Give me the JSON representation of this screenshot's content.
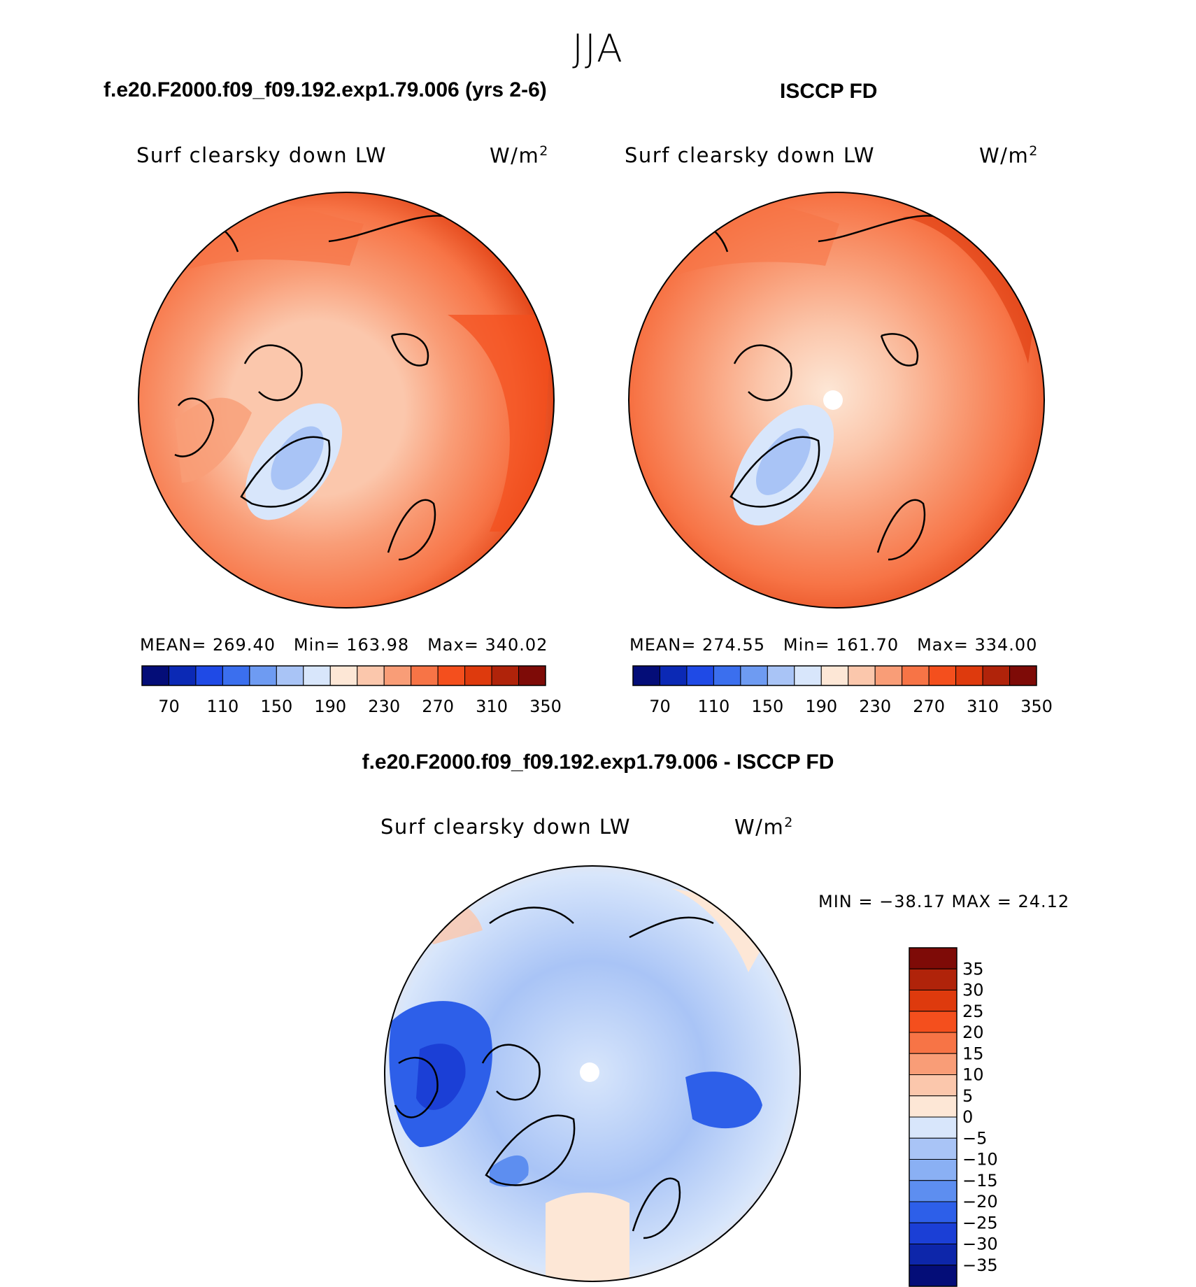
{
  "season": "JJA",
  "panels": {
    "model": {
      "title": "f.e20.F2000.f09_f09.192.exp1.79.006 (yrs 2-6)",
      "var_label": "Surf clearsky down LW",
      "units_base": "W/m",
      "units_sup": "2",
      "mean_label": "MEAN=",
      "mean": "269.40",
      "min_label": "Min=",
      "min": "163.98",
      "max_label": "Max=",
      "max": "340.02"
    },
    "obs": {
      "title": "ISCCP FD",
      "var_label": "Surf clearsky down LW",
      "units_base": "W/m",
      "units_sup": "2",
      "mean_label": "MEAN=",
      "mean": "274.55",
      "min_label": "Min=",
      "min": "161.70",
      "max_label": "Max=",
      "max": "334.00"
    },
    "diff": {
      "title": "f.e20.F2000.f09_f09.192.exp1.79.006 - ISCCP FD",
      "var_label": "Surf clearsky down LW",
      "units_base": "W/m",
      "units_sup": "2",
      "minmax": "MIN = −38.17 MAX =   24.12"
    }
  },
  "chart_data": [
    {
      "type": "heatmap",
      "projection": "north polar stereographic",
      "title": "f.e20.F2000.f09_f09.192.exp1.79.006 (yrs 2-6)",
      "variable": "Surf clearsky down LW",
      "units": "W/m2",
      "mean": 269.4,
      "min": 163.98,
      "max": 340.02,
      "colorbar_ticks": [
        "70",
        "110",
        "150",
        "190",
        "230",
        "270",
        "310",
        "350"
      ],
      "colorbar_colors": [
        "#040d78",
        "#0b29b5",
        "#1f4ae6",
        "#3b6fee",
        "#6e9bf2",
        "#a9c4f6",
        "#d8e6fb",
        "#fde7d6",
        "#fbc7ac",
        "#f99d77",
        "#f77446",
        "#f44f1d",
        "#de3a0d",
        "#b0230a",
        "#7e0b07"
      ]
    },
    {
      "type": "heatmap",
      "projection": "north polar stereographic",
      "title": "ISCCP FD",
      "variable": "Surf clearsky down LW",
      "units": "W/m2",
      "mean": 274.55,
      "min": 161.7,
      "max": 334.0,
      "colorbar_ticks": [
        "70",
        "110",
        "150",
        "190",
        "230",
        "270",
        "310",
        "350"
      ],
      "colorbar_colors": [
        "#040d78",
        "#0b29b5",
        "#1f4ae6",
        "#3b6fee",
        "#6e9bf2",
        "#a9c4f6",
        "#d8e6fb",
        "#fde7d6",
        "#fbc7ac",
        "#f99d77",
        "#f77446",
        "#f44f1d",
        "#de3a0d",
        "#b0230a",
        "#7e0b07"
      ]
    },
    {
      "type": "heatmap",
      "projection": "north polar stereographic",
      "title": "f.e20.F2000.f09_f09.192.exp1.79.006 - ISCCP FD",
      "variable": "Surf clearsky down LW",
      "units": "W/m2",
      "min": -38.17,
      "max": 24.12,
      "colorbar_ticks": [
        "35",
        "30",
        "25",
        "20",
        "15",
        "10",
        "5",
        "0",
        "−5",
        "−10",
        "−15",
        "−20",
        "−25",
        "−30",
        "−35"
      ],
      "colorbar_colors": [
        "#7e0b07",
        "#b0230a",
        "#de3a0d",
        "#f44f1d",
        "#f77446",
        "#f99d77",
        "#fbc7ac",
        "#fde7d6",
        "#d8e6fb",
        "#a9c4f6",
        "#8ab0f4",
        "#5d8ef0",
        "#2d5fe9",
        "#1b3fd6",
        "#0d26aa",
        "#040d78"
      ]
    }
  ]
}
